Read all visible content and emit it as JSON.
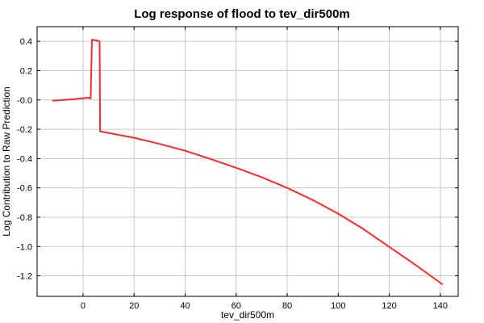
{
  "chart_data": {
    "type": "line",
    "title": "Log response of flood to tev_dir500m",
    "xlabel": "tev_dir500m",
    "ylabel": "Log Contribution to Raw Prediction",
    "xlim": [
      -18,
      147
    ],
    "ylim": [
      -1.34,
      0.5
    ],
    "xticks": [
      0,
      20,
      40,
      60,
      80,
      100,
      120,
      140
    ],
    "yticks": [
      0.4,
      0.2,
      0.0,
      -0.2,
      -0.4,
      -0.6,
      -0.8,
      -1.0,
      -1.2
    ],
    "xtick_labels": [
      "0",
      "20",
      "40",
      "60",
      "80",
      "100",
      "120",
      "140"
    ],
    "ytick_labels": [
      "0.4",
      "0.2",
      "-0.0",
      "-0.2",
      "-0.4",
      "-0.6",
      "-0.8",
      "-1.0",
      "-1.2"
    ],
    "grid": true,
    "legend": "none",
    "color": "#ff2a2a",
    "series": [
      {
        "x": [
          -12,
          -8,
          -4,
          0,
          2,
          3,
          3.5,
          5,
          6.5,
          6.7,
          10,
          20,
          30,
          40,
          50,
          60,
          70,
          80,
          90,
          100,
          110,
          120,
          130,
          141
        ],
        "y": [
          -0.005,
          -0.001,
          0.004,
          0.012,
          0.016,
          0.01,
          0.41,
          0.407,
          0.4,
          -0.215,
          -0.225,
          -0.258,
          -0.3,
          -0.347,
          -0.403,
          -0.463,
          -0.527,
          -0.6,
          -0.683,
          -0.776,
          -0.882,
          -1.003,
          -1.122,
          -1.26
        ]
      }
    ]
  }
}
